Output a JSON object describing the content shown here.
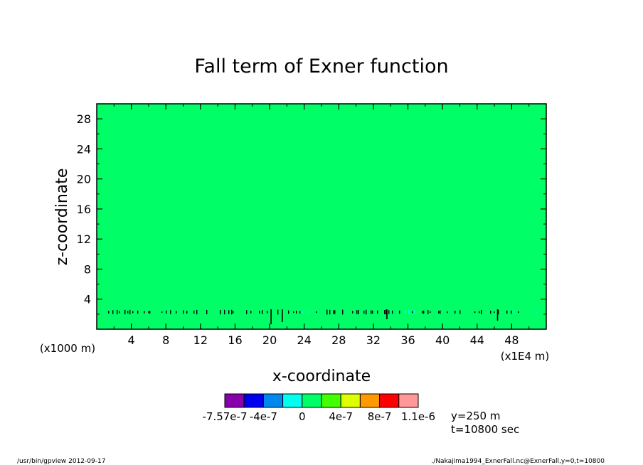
{
  "chart_data": {
    "type": "heatmap",
    "title": "Fall term of Exner function",
    "xlabel": "x-coordinate",
    "ylabel": "z-coordinate",
    "x_unit_left": "(x1000 m)",
    "x_unit_right": "(x1E4 m)",
    "xlim": [
      0,
      52
    ],
    "ylim": [
      0,
      30
    ],
    "x_ticks": [
      4,
      8,
      12,
      16,
      20,
      24,
      28,
      32,
      36,
      40,
      44,
      48
    ],
    "x_tick_labels": [
      "4",
      "8",
      "12",
      "16",
      "20",
      "24",
      "28",
      "32",
      "36",
      "40",
      "44",
      "48"
    ],
    "y_ticks": [
      4,
      8,
      12,
      16,
      20,
      24,
      28
    ],
    "y_tick_labels": [
      "4",
      "8",
      "12",
      "16",
      "20",
      "24",
      "28"
    ],
    "background_level_color": "#00ff66",
    "colorbar": {
      "colors": [
        "#8800aa",
        "#0000ee",
        "#0088ee",
        "#00ffee",
        "#00ff66",
        "#44ff00",
        "#ddff00",
        "#ff9900",
        "#ff0000",
        "#ff9999"
      ],
      "labels": [
        "-7.57e-7",
        "-4e-7",
        "0",
        "4e-7",
        "8e-7",
        "1.1e-6"
      ],
      "label_boundaries": [
        0,
        2,
        4,
        6,
        8,
        10
      ]
    },
    "annotations": [
      "y=250 m",
      "t=10800 sec"
    ]
  },
  "footer": {
    "left": "/usr/bin/gpview   2012-09-17",
    "right": "./Nakajima1994_ExnerFall.nc@ExnerFall,y=0,t=10800"
  }
}
